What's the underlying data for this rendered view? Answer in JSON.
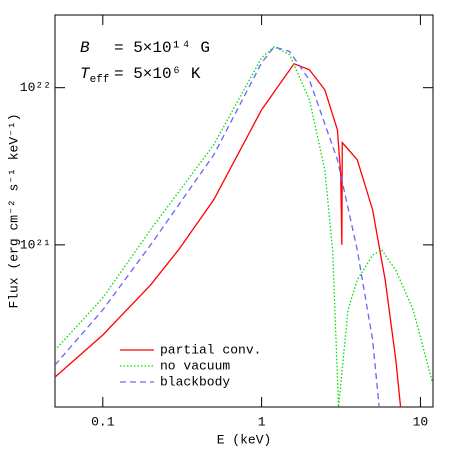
{
  "chart_data": {
    "type": "line",
    "xlabel": "E (keV)",
    "ylabel": "Flux (erg cm⁻² s⁻¹ keV⁻¹)",
    "annotations": [
      {
        "symbol": "B",
        "text": "= 5×10¹⁴ G"
      },
      {
        "symbol": "T",
        "subscript": "eff",
        "text": "= 5×10⁶ K"
      }
    ],
    "xscale": "log",
    "yscale": "log",
    "xlim": [
      0.05,
      12
    ],
    "ylim": [
      9.3e+19,
      2.9e+22
    ],
    "xticks": [
      0.1,
      1,
      10
    ],
    "yticks": [
      {
        "value": 1e+21,
        "label": "10²¹"
      },
      {
        "value": 1e+22,
        "label": "10²²"
      }
    ],
    "legend": "lower left",
    "series": [
      {
        "name": "partial conv.",
        "color": "#ff0000",
        "style": "solid",
        "x": [
          0.05,
          0.1,
          0.2,
          0.3,
          0.5,
          1,
          1.6,
          2,
          2.5,
          3,
          3.15,
          3.2,
          3.22,
          4,
          5,
          6,
          7,
          7.5
        ],
        "values": [
          1.44e+20,
          2.67e+20,
          5.56e+20,
          9.3e+20,
          1.94e+21,
          7.24e+21,
          1.42e+22,
          1.3e+22,
          9.7e+21,
          5.4e+21,
          2.79e+21,
          1e+21,
          4.47e+21,
          3.48e+21,
          1.67e+21,
          5.98e+20,
          1.85e+20,
          9.3e+19
        ]
      },
      {
        "name": "no vacuum",
        "color": "#00dd00",
        "style": "dotted",
        "x": [
          0.05,
          0.1,
          0.2,
          0.5,
          1,
          1.2,
          1.5,
          2,
          2.5,
          2.8,
          3.05,
          3.5,
          4,
          5,
          5.7,
          7,
          9,
          12
        ],
        "values": [
          2.14e+20,
          4.6e+20,
          1.25e+21,
          4.34e+21,
          1.55e+22,
          1.82e+22,
          1.62e+22,
          8.4e+21,
          3e+21,
          9.3e+20,
          9.3e+19,
          3.86e+20,
          5.98e+20,
          8.6e+20,
          9.3e+20,
          6.9e+20,
          3.86e+20,
          1.29e+20
        ]
      },
      {
        "name": "blackbody",
        "color": "#6666ff",
        "style": "dashed",
        "x": [
          0.05,
          0.1,
          0.2,
          0.5,
          1,
          1.2,
          1.5,
          2,
          3,
          4,
          5,
          5.5
        ],
        "values": [
          1.72e+20,
          3.86e+20,
          1e+21,
          3.74e+21,
          1.44e+22,
          1.82e+22,
          1.7e+22,
          1.12e+22,
          3.48e+21,
          9.3e+20,
          2.48e+20,
          9.3e+19
        ]
      }
    ]
  }
}
